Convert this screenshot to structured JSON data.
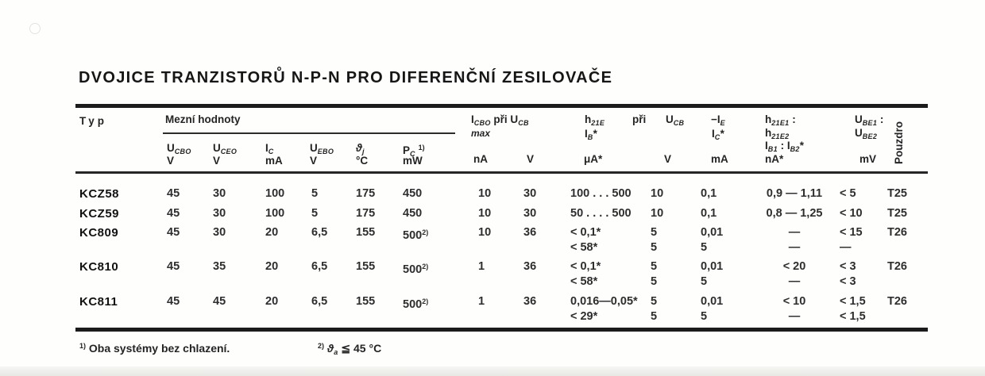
{
  "title": "DVOJICE TRANZISTORŮ N-P-N PRO DIFERENČNÍ ZESILOVAČE",
  "table": {
    "header": {
      "typ_label": "Typ",
      "mezni_label": "Mezní hodnoty",
      "icbo": {
        "line1": [
          [
            [
              "I",
              ""
            ],
            [
              "CBO",
              "sub"
            ],
            [
              " při U",
              ""
            ],
            [
              "CB",
              "sub"
            ]
          ]
        ],
        "line2": [
          [
            [
              "max",
              "it"
            ]
          ]
        ],
        "unit_na": "nA",
        "unit_v": "V"
      },
      "h21e": {
        "sym": [
          [
            [
              "h",
              ""
            ],
            [
              "21E",
              "sub"
            ]
          ]
        ],
        "pri": "při",
        "ucb": [
          [
            [
              "U",
              ""
            ],
            [
              "CB",
              "sub"
            ]
          ]
        ],
        "ib": [
          [
            [
              "I",
              ""
            ],
            [
              "B",
              "sub"
            ],
            [
              "*",
              ""
            ]
          ]
        ],
        "unit": "μA*",
        "unit_v": "V"
      },
      "ie": {
        "line1": [
          [
            [
              "−I",
              ""
            ],
            [
              "E",
              "sub"
            ]
          ]
        ],
        "line2": [
          [
            [
              "I",
              ""
            ],
            [
              "C",
              "sub"
            ],
            [
              "*",
              ""
            ]
          ]
        ],
        "unit": "mA"
      },
      "ratio": {
        "line1": [
          [
            [
              "h",
              ""
            ],
            [
              "21E1",
              "sub"
            ],
            [
              " :",
              ""
            ]
          ]
        ],
        "line2": [
          [
            [
              "h",
              ""
            ],
            [
              "21E2",
              "sub"
            ]
          ]
        ],
        "line3": [
          [
            [
              "I",
              ""
            ],
            [
              "B1",
              "sub"
            ],
            [
              " : I",
              ""
            ],
            [
              "B2",
              "sub"
            ],
            [
              "*",
              ""
            ]
          ]
        ],
        "unit": "nA*"
      },
      "ube": {
        "line1": [
          [
            [
              "U",
              ""
            ],
            [
              "BE1",
              "sub"
            ],
            [
              " :",
              ""
            ]
          ]
        ],
        "line2": [
          [
            [
              "U",
              ""
            ],
            [
              "BE2",
              "sub"
            ]
          ]
        ],
        "unit": "mV"
      },
      "pouzdro_label": "Pouzdro",
      "mezni_cols": [
        {
          "sym": [
            [
              [
                "U",
                ""
              ],
              [
                "CBO",
                "sub"
              ]
            ]
          ],
          "unit": "V"
        },
        {
          "sym": [
            [
              [
                "U",
                ""
              ],
              [
                "CEO",
                "sub"
              ]
            ]
          ],
          "unit": "V"
        },
        {
          "sym": [
            [
              [
                "I",
                ""
              ],
              [
                "C",
                "sub"
              ]
            ]
          ],
          "unit": "mA"
        },
        {
          "sym": [
            [
              [
                "U",
                ""
              ],
              [
                "EBO",
                "sub"
              ]
            ]
          ],
          "unit": "V"
        },
        {
          "sym": [
            [
              [
                "ϑ",
                "it"
              ],
              [
                "j",
                "sub"
              ]
            ]
          ],
          "unit": "°C"
        },
        {
          "sym": [
            [
              [
                "P",
                ""
              ],
              [
                "C",
                "sub"
              ],
              [
                " ",
                ""
              ],
              [
                "1)",
                "sup"
              ]
            ]
          ],
          "unit": "mW"
        }
      ]
    },
    "rows": [
      {
        "typ": "KCZ58",
        "ucbo": "45",
        "uceo": "30",
        "ic": "100",
        "uebo": "5",
        "tj": "175",
        "pc": "450",
        "icbo": "10",
        "ucb1": "30",
        "h21e": "100 . . . 500",
        "ucb2": "10",
        "ie": "0,1",
        "ratio": "0,9 — 1,11",
        "ube": "< 5",
        "pouzdro": "T25"
      },
      {
        "typ": "KCZ59",
        "ucbo": "45",
        "uceo": "30",
        "ic": "100",
        "uebo": "5",
        "tj": "175",
        "pc": "450",
        "icbo": "10",
        "ucb1": "30",
        "h21e": "50 . . . . 500",
        "ucb2": "10",
        "ie": "0,1",
        "ratio": "0,8 — 1,25",
        "ube": "< 10",
        "pouzdro": "T25"
      },
      {
        "typ": "KC809",
        "ucbo": "45",
        "uceo": "30",
        "ic": "20",
        "uebo": "6,5",
        "tj": "155",
        "pc": [
          [
            [
              "500",
              ""
            ],
            [
              "2)",
              "sup"
            ]
          ]
        ],
        "icbo": "10",
        "ucb1": "36",
        "h21e": [
          "< 0,1*",
          "< 58*"
        ],
        "ucb2": [
          "5",
          "5"
        ],
        "ie": [
          "0,01",
          "5"
        ],
        "ratio": [
          "—",
          "—"
        ],
        "ube": [
          "< 15",
          "—"
        ],
        "pouzdro": "T26"
      },
      {
        "typ": "KC810",
        "ucbo": "45",
        "uceo": "35",
        "ic": "20",
        "uebo": "6,5",
        "tj": "155",
        "pc": [
          [
            [
              "500",
              ""
            ],
            [
              "2)",
              "sup"
            ]
          ]
        ],
        "icbo": "1",
        "ucb1": "36",
        "h21e": [
          "< 0,1*",
          "< 58*"
        ],
        "ucb2": [
          "5",
          "5"
        ],
        "ie": [
          "0,01",
          "5"
        ],
        "ratio": [
          "< 20",
          "—"
        ],
        "ube": [
          "< 3",
          "< 3"
        ],
        "pouzdro": "T26"
      },
      {
        "typ": "KC811",
        "ucbo": "45",
        "uceo": "45",
        "ic": "20",
        "uebo": "6,5",
        "tj": "155",
        "pc": [
          [
            [
              "500",
              ""
            ],
            [
              "2)",
              "sup"
            ]
          ]
        ],
        "icbo": "1",
        "ucb1": "36",
        "h21e": [
          "0,016—0,05*",
          "< 29*"
        ],
        "ucb2": [
          "5",
          "5"
        ],
        "ie": [
          "0,01",
          "5"
        ],
        "ratio": [
          "< 10",
          "—"
        ],
        "ube": [
          "< 1,5",
          "< 1,5"
        ],
        "pouzdro": "T26"
      }
    ]
  },
  "footnotes": {
    "fn1": [
      [
        [
          "1)",
          "sup"
        ],
        [
          " Oba systémy bez chlazení.",
          ""
        ]
      ]
    ],
    "fn2": [
      [
        [
          "2)",
          "sup"
        ],
        [
          " ",
          ""
        ],
        [
          "ϑ",
          "it"
        ],
        [
          "a",
          "sub"
        ],
        [
          " ≦ 45 °C",
          ""
        ]
      ]
    ]
  }
}
